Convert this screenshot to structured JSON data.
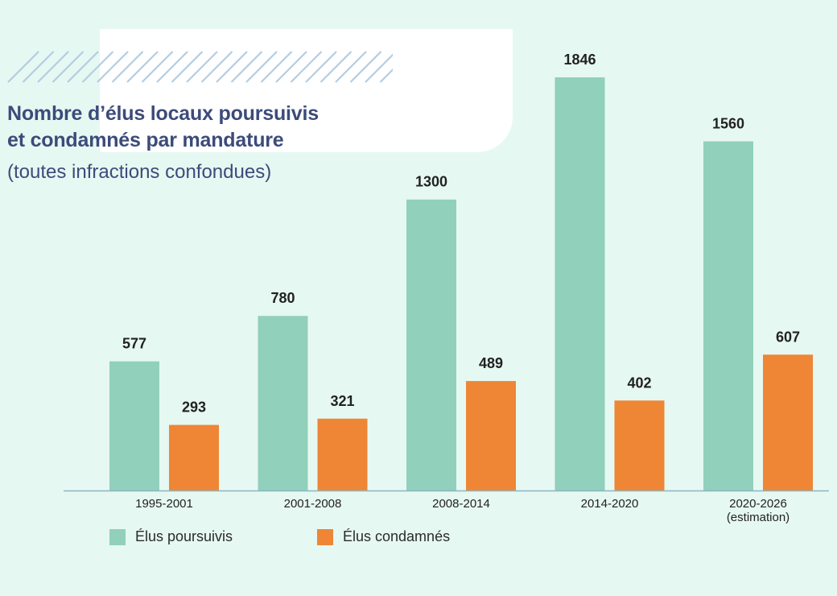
{
  "colors": {
    "background": "#e6f8f2",
    "title": "#3c4b7a",
    "hatch": "#b3cde2",
    "series": [
      "#91d0bb",
      "#ee8636"
    ],
    "axis": "#8fb4c2"
  },
  "header": {
    "title_line1": "Nombre d’élus locaux poursuivis",
    "title_line2": "et condamnés par mandature",
    "subtitle": "(toutes infractions confondues)"
  },
  "legend": {
    "items": [
      {
        "label": "Élus poursuivis",
        "color": "#91d0bb"
      },
      {
        "label": "Élus condamnés",
        "color": "#ee8636"
      }
    ]
  },
  "chart_data": {
    "type": "bar",
    "title": "Nombre d’élus locaux poursuivis et condamnés par mandature",
    "subtitle": "(toutes infractions confondues)",
    "categories": [
      "1995-2001",
      "2001-2008",
      "2008-2014",
      "2014-2020",
      "2020-2026\n(estimation)"
    ],
    "series": [
      {
        "name": "Élus poursuivis",
        "values": [
          577,
          780,
          1300,
          1846,
          1560
        ]
      },
      {
        "name": "Élus condamnés",
        "values": [
          293,
          321,
          489,
          402,
          607
        ]
      }
    ],
    "ylim": [
      0,
      1846
    ],
    "grid": false,
    "data_labels": true,
    "legend": "bottom-left"
  }
}
